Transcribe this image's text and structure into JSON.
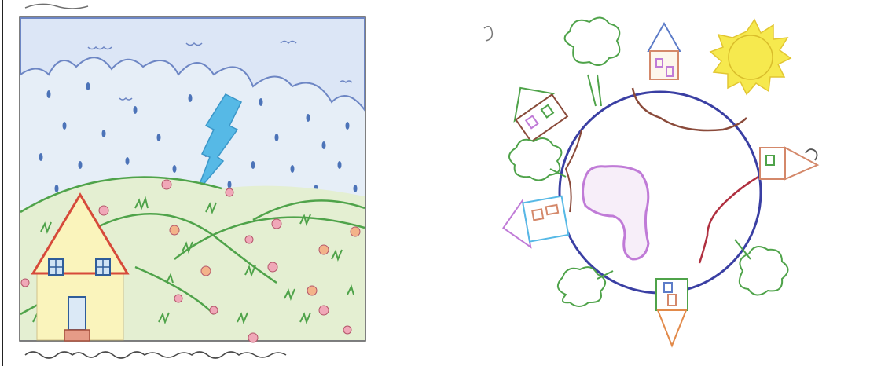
{
  "image": {
    "panels": [
      {
        "id": "rain-drawing",
        "icon": "child-drawing-rainy-landscape-with-house-and-lightning"
      },
      {
        "id": "earth-drawing",
        "icon": "child-drawing-earth-globe-with-houses-trees-and-sun"
      }
    ],
    "colors": {
      "sky": "#dfe9f5",
      "cloud_outline": "#6d86c4",
      "rain": "#4c73b8",
      "lightning": "#56b9e6",
      "hills": "#e4efd2",
      "hill_outline": "#4fa34a",
      "house_wall": "#faf4bc",
      "house_roof": "#d64a3a",
      "globe_outline": "#3a3fa3",
      "continent_purple": "#c07bd7",
      "sun": "#f6e94e"
    }
  }
}
